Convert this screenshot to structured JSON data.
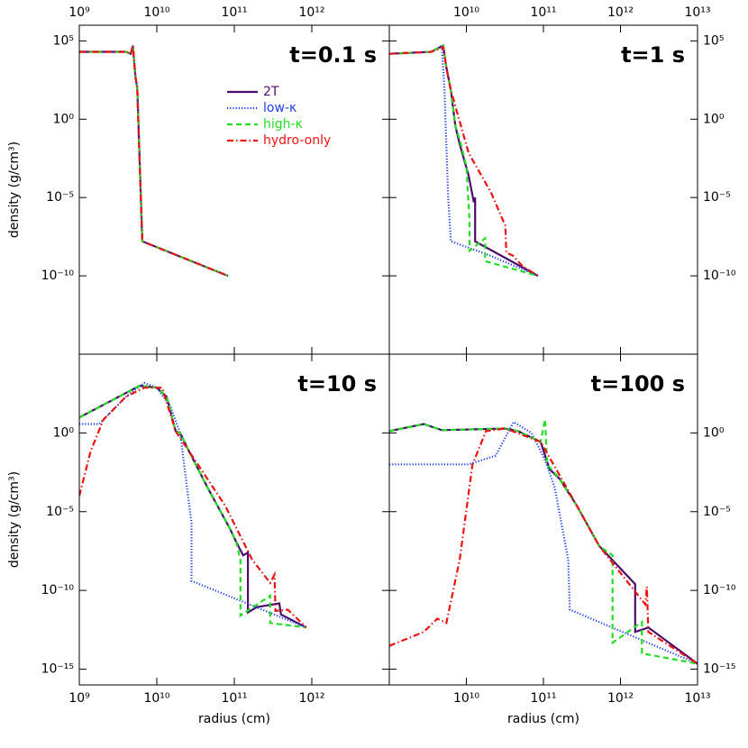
{
  "chart_data": [
    {
      "type": "line",
      "title": "t=0.1 s",
      "ylabel": "density (g/cm³)",
      "xscale": "log",
      "yscale": "log",
      "xaxis": "top",
      "yaxis": "left",
      "legend": "upper center",
      "xlim": [
        1000000000.0,
        10000000000000.0
      ],
      "ylim": [
        1e-15,
        1000000.0
      ],
      "xticks": [
        {
          "value": 1000000000.0,
          "label": "10⁹"
        },
        {
          "value": 10000000000.0,
          "label": "10¹⁰"
        },
        {
          "value": 100000000000.0,
          "label": "10¹¹"
        },
        {
          "value": 1000000000000.0,
          "label": "10¹²"
        }
      ],
      "yticks": [
        {
          "value": 100000.0,
          "label": "10⁵"
        },
        {
          "value": 1,
          "label": "10⁰"
        },
        {
          "value": 1e-05,
          "label": "10⁻⁵"
        },
        {
          "value": 1e-10,
          "label": "10⁻¹⁰"
        }
      ],
      "series": [
        {
          "name": "2T",
          "color": "#4b0c6e",
          "style": "solid",
          "x": [
            1000000000.0,
            4000000000.0,
            4600000000.0,
            4900000000.0,
            5300000000.0,
            5600000000.0,
            6500000000.0,
            83000000000.0
          ],
          "values": [
            20000.0,
            20000.0,
            15000.0,
            50000.0,
            500,
            100,
            1.6e-08,
            1e-10
          ]
        },
        {
          "name": "low-κ",
          "color": "#1f3fe0",
          "style": "dotted",
          "x": [
            1000000000.0,
            4000000000.0,
            4600000000.0,
            4900000000.0,
            5300000000.0,
            5600000000.0,
            6500000000.0,
            83000000000.0
          ],
          "values": [
            20000.0,
            20000.0,
            15000.0,
            50000.0,
            500,
            100,
            1.6e-08,
            1e-10
          ]
        },
        {
          "name": "high-κ",
          "color": "#22dd22",
          "style": "dashed",
          "x": [
            1000000000.0,
            4000000000.0,
            4600000000.0,
            4900000000.0,
            5300000000.0,
            5600000000.0,
            6500000000.0,
            83000000000.0
          ],
          "values": [
            20000.0,
            20000.0,
            15000.0,
            50000.0,
            500,
            100,
            1.6e-08,
            1e-10
          ]
        },
        {
          "name": "hydro-only",
          "color": "#ee1111",
          "style": "dashdot",
          "x": [
            1000000000.0,
            4000000000.0,
            4600000000.0,
            4900000000.0,
            5300000000.0,
            5600000000.0,
            6500000000.0,
            83000000000.0
          ],
          "values": [
            20000.0,
            20000.0,
            15000.0,
            50000.0,
            500,
            100,
            1.6e-08,
            1e-10
          ]
        }
      ]
    },
    {
      "type": "line",
      "title": "t=1 s",
      "xscale": "log",
      "yscale": "log",
      "xaxis": "top",
      "yaxis": "right",
      "xlim": [
        1000000000.0,
        10000000000000.0
      ],
      "ylim": [
        1e-15,
        1000000.0
      ],
      "xticks": [
        {
          "value": 10000000000.0,
          "label": "10¹⁰"
        },
        {
          "value": 100000000000.0,
          "label": "10¹¹"
        },
        {
          "value": 1000000000000.0,
          "label": "10¹²"
        },
        {
          "value": 10000000000000.0,
          "label": "10¹³"
        }
      ],
      "yticks": [
        {
          "value": 100000.0,
          "label": "10⁵"
        },
        {
          "value": 1,
          "label": "10⁰"
        },
        {
          "value": 1e-05,
          "label": "10⁻⁵"
        },
        {
          "value": 1e-10,
          "label": "10⁻¹⁰"
        }
      ],
      "series": [
        {
          "color": "#4b0c6e",
          "style": "solid",
          "x": [
            1000000000.0,
            3500000000.0,
            5000000000.0,
            5500000000.0,
            6300000000.0,
            7200000000.0,
            8200000000.0,
            10700000000.0,
            12500000000.0,
            13000000000.0,
            13000000000.0,
            85000000000.0
          ],
          "values": [
            15000.0,
            20000.0,
            50000.0,
            2000,
            70,
            0.36,
            0.026,
            0.00025,
            5e-06,
            1e-05,
            1.6e-08,
            1e-10
          ]
        },
        {
          "color": "#1f3fe0",
          "style": "dotted",
          "x": [
            1000000000.0,
            3500000000.0,
            4800000000.0,
            5200000000.0,
            5800000000.0,
            6300000000.0,
            18000000000.0,
            85000000000.0
          ],
          "values": [
            15000.0,
            20000.0,
            50000.0,
            70,
            1e-05,
            1.6e-08,
            2.5e-09,
            1e-10
          ]
        },
        {
          "color": "#22dd22",
          "style": "dashed",
          "x": [
            1000000000.0,
            3500000000.0,
            5000000000.0,
            5500000000.0,
            6300000000.0,
            7200000000.0,
            8200000000.0,
            10000000000.0,
            11000000000.0,
            11000000000.0,
            17500000000.0,
            17500000000.0,
            85000000000.0
          ],
          "values": [
            15000.0,
            20000.0,
            50000.0,
            2000,
            70,
            0.36,
            0.05,
            0.001,
            3.4e-07,
            4e-09,
            2.5e-08,
            8.7e-10,
            1e-10
          ]
        },
        {
          "color": "#ee1111",
          "style": "dashdot",
          "x": [
            1000000000.0,
            3500000000.0,
            5000000000.0,
            5500000000.0,
            6300000000.0,
            10700000000.0,
            21000000000.0,
            32000000000.0,
            33000000000.0,
            40000000000.0,
            54000000000.0,
            85000000000.0
          ],
          "values": [
            15000.0,
            20000.0,
            40000.0,
            2000,
            70,
            0.007,
            2e-05,
            1.6e-07,
            3e-09,
            2e-09,
            4e-10,
            1e-10
          ]
        }
      ]
    },
    {
      "type": "line",
      "title": "t=10 s",
      "xlabel": "radius (cm)",
      "ylabel": "density (g/cm³)",
      "xscale": "log",
      "yscale": "log",
      "xaxis": "bottom",
      "yaxis": "left",
      "xlim": [
        1000000000.0,
        10000000000000.0
      ],
      "ylim": [
        1e-16,
        100000.0
      ],
      "xticks": [
        {
          "value": 1000000000.0,
          "label": "10⁹"
        },
        {
          "value": 10000000000.0,
          "label": "10¹⁰"
        },
        {
          "value": 100000000000.0,
          "label": "10¹¹"
        },
        {
          "value": 1000000000000.0,
          "label": "10¹²"
        }
      ],
      "yticks": [
        {
          "value": 1,
          "label": "10⁰"
        },
        {
          "value": 1e-05,
          "label": "10⁻⁵"
        },
        {
          "value": 1e-10,
          "label": "10⁻¹⁰"
        },
        {
          "value": 1e-15,
          "label": "10⁻¹⁵"
        }
      ],
      "series": [
        {
          "color": "#4b0c6e",
          "style": "solid",
          "x": [
            1000000000.0,
            6000000000.0,
            10000000000.0,
            13400000000.0,
            17500000000.0,
            20000000000.0,
            26000000000.0,
            45000000000.0,
            87000000000.0,
            105000000000.0,
            130000000000.0,
            150000000000.0,
            150000000000.0,
            195000000000.0,
            380000000000.0,
            400000000000.0,
            850000000000.0
          ],
          "values": [
            9.5,
            1000,
            740,
            200,
            1.3,
            1,
            0.07,
            0.00035,
            9e-07,
            1.3e-07,
            1.7e-08,
            2.5e-08,
            4e-12,
            8.7e-12,
            1.5e-11,
            3e-12,
            4.4e-13
          ]
        },
        {
          "color": "#1f3fe0",
          "style": "dotted",
          "x": [
            1000000000.0,
            1800000000.0,
            4000000000.0,
            6900000000.0,
            10000000000.0,
            15000000000.0,
            20000000000.0,
            28000000000.0,
            28000000000.0,
            850000000000.0
          ],
          "values": [
            3.7,
            3.7,
            200,
            1500,
            740,
            50,
            1,
            1.8e-06,
            4e-10,
            4.4e-13
          ]
        },
        {
          "color": "#22dd22",
          "style": "dashed",
          "x": [
            1000000000.0,
            6000000000.0,
            10000000000.0,
            13400000000.0,
            17500000000.0,
            20000000000.0,
            26000000000.0,
            45000000000.0,
            87000000000.0,
            105000000000.0,
            120000000000.0,
            120000000000.0,
            290000000000.0,
            290000000000.0,
            850000000000.0
          ],
          "values": [
            9.5,
            1000,
            740,
            200,
            1.3,
            1,
            0.07,
            0.00035,
            9e-07,
            1.3e-07,
            9e-09,
            2.5e-12,
            4.6e-11,
            8.5e-13,
            4.4e-13
          ]
        },
        {
          "color": "#ee1111",
          "style": "dashdot",
          "x": [
            1000000000.0,
            1400000000.0,
            2050000000.0,
            4000000000.0,
            6900000000.0,
            11700000000.0,
            17500000000.0,
            26000000000.0,
            76000000000.0,
            170000000000.0,
            290000000000.0,
            330000000000.0,
            340000000000.0,
            490000000000.0,
            850000000000.0
          ],
          "values": [
            0.0001,
            0.07,
            7,
            200,
            740,
            740,
            1.3,
            0.07,
            2.5e-05,
            9e-09,
            3e-10,
            1e-09,
            5e-12,
            6e-12,
            4.4e-13
          ]
        }
      ]
    },
    {
      "type": "line",
      "title": "t=100 s",
      "xlabel": "radius (cm)",
      "xscale": "log",
      "yscale": "log",
      "xaxis": "bottom",
      "yaxis": "right",
      "xlim": [
        1000000000.0,
        10000000000000.0
      ],
      "ylim": [
        1e-16,
        100000.0
      ],
      "xticks": [
        {
          "value": 10000000000.0,
          "label": "10¹⁰"
        },
        {
          "value": 100000000000.0,
          "label": "10¹¹"
        },
        {
          "value": 1000000000000.0,
          "label": "10¹²"
        },
        {
          "value": 10000000000000.0,
          "label": "10¹³"
        }
      ],
      "yticks": [
        {
          "value": 1,
          "label": "10⁰"
        },
        {
          "value": 1e-05,
          "label": "10⁻⁵"
        },
        {
          "value": 1e-10,
          "label": "10⁻¹⁰"
        },
        {
          "value": 1e-15,
          "label": "10⁻¹⁵"
        }
      ],
      "series": [
        {
          "color": "#4b0c6e",
          "style": "solid",
          "x": [
            1000000000.0,
            2800000000.0,
            4800000000.0,
            32000000000.0,
            47000000000.0,
            92000000000.0,
            120000000000.0,
            160000000000.0,
            270000000000.0,
            530000000000.0,
            1550000000000.0,
            1550000000000.0,
            2300000000000.0,
            10000000000000.0
          ],
          "values": [
            1.3,
            3.7,
            1.5,
            1.9,
            1.3,
            0.27,
            0.005,
            0.0013,
            2.5e-05,
            6.6e-08,
            2.5e-10,
            2.3e-13,
            4.4e-13,
            2.2e-15
          ]
        },
        {
          "color": "#1f3fe0",
          "style": "dotted",
          "x": [
            1000000000.0,
            10700000000.0,
            24000000000.0,
            41000000000.0,
            70000000000.0,
            105000000000.0,
            140000000000.0,
            210000000000.0,
            220000000000.0,
            10000000000000.0
          ],
          "values": [
            0.01,
            0.01,
            0.036,
            4.9,
            1,
            0.019,
            0.00035,
            9e-09,
            6e-12,
            2.2e-15
          ]
        },
        {
          "color": "#22dd22",
          "style": "dashed",
          "x": [
            1000000000.0,
            2800000000.0,
            4800000000.0,
            32000000000.0,
            47000000000.0,
            92000000000.0,
            105000000000.0,
            112000000000.0,
            160000000000.0,
            270000000000.0,
            530000000000.0,
            790000000000.0,
            790000000000.0,
            1900000000000.0,
            1900000000000.0,
            10000000000000.0
          ],
          "values": [
            1.3,
            3.7,
            1.5,
            1.9,
            1.3,
            0.27,
            7.2,
            0.01,
            0.0013,
            2.5e-05,
            6.6e-08,
            1.7e-08,
            4.7e-14,
            1e-12,
            1e-14,
            2.2e-15
          ]
        },
        {
          "color": "#ee1111",
          "style": "dashdot",
          "x": [
            1000000000.0,
            2800000000.0,
            4200000000.0,
            5500000000.0,
            8200000000.0,
            12000000000.0,
            18000000000.0,
            32000000000.0,
            92000000000.0,
            270000000000.0,
            530000000000.0,
            2100000000000.0,
            2200000000000.0,
            2300000000000.0,
            10000000000000.0
          ],
          "values": [
            3e-14,
            2.3e-13,
            1.6e-12,
            8.5e-13,
            9e-09,
            0.01,
            1.3,
            1.9,
            0.27,
            2.5e-05,
            6.6e-08,
            1.3e-11,
            1.7e-10,
            2.3e-13,
            2.2e-15
          ]
        }
      ]
    }
  ]
}
